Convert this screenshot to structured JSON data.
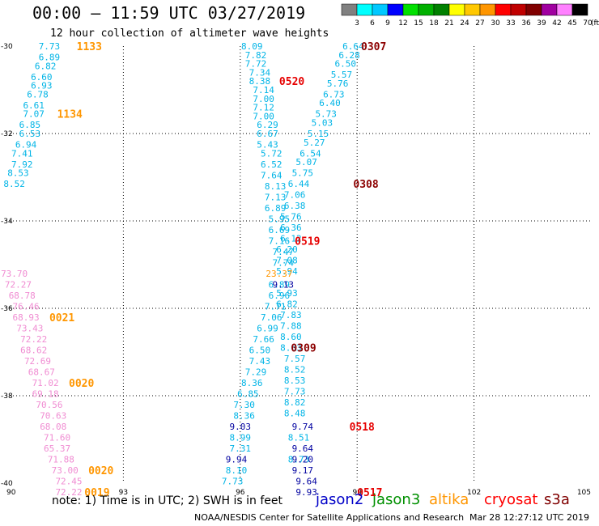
{
  "header": {
    "title": "00:00 – 11:59 UTC 03/27/2019",
    "subtitle": "12 hour collection of altimeter wave heights"
  },
  "colorbar": {
    "labels": [
      "3",
      "6",
      "9",
      "12",
      "15",
      "18",
      "21",
      "24",
      "27",
      "30",
      "33",
      "36",
      "39",
      "42",
      "45",
      "70"
    ],
    "unit": "(ft)",
    "colors": [
      "#808080",
      "#00ffff",
      "#00c8ff",
      "#0000ff",
      "#00e000",
      "#00b000",
      "#008000",
      "#ffff00",
      "#ffc800",
      "#ff9600",
      "#ff0000",
      "#c00000",
      "#800000",
      "#a000a0",
      "#ff80ff",
      "#000000"
    ]
  },
  "footer": {
    "note": "note:  1) Time is in UTC; 2) SWH is in feet",
    "satellites": [
      {
        "name": "jason2",
        "color": "#0000c8"
      },
      {
        "name": "jason3",
        "color": "#009000"
      },
      {
        "name": "altika",
        "color": "#ff9600"
      },
      {
        "name": "cryosat",
        "color": "#ff0000"
      },
      {
        "name": "s3a",
        "color": "#800000"
      }
    ],
    "credit": "NOAA/NESDIS Center for Satellite Applications and Research",
    "timestamp": "Mar 28 12:27:12 UTC 2019"
  },
  "chart_data": {
    "type": "scatter",
    "xlim": [
      90,
      105
    ],
    "ylim": [
      -40,
      -30
    ],
    "x_ticks": [
      90,
      93,
      96,
      99,
      102,
      105
    ],
    "y_ticks": [
      -30,
      -32,
      -34,
      -36,
      -38,
      -40
    ],
    "x_tick_labels": [
      "90",
      "93",
      "96",
      "99",
      "102",
      "105"
    ],
    "y_tick_labels": [
      "-30",
      "-32",
      "-34",
      "-36",
      "-38",
      "-40"
    ],
    "grid": true,
    "colors": {
      "cyan": "#00b4e6",
      "pink": "#f08cd2",
      "navy": "#0000a0",
      "orange": "#ff9600",
      "red": "#e60000",
      "darkred": "#8c0000"
    },
    "tracks": [
      {
        "color": "cyan",
        "points": [
          [
            91.1,
            -30.0,
            "7.73"
          ],
          [
            91.1,
            -30.25,
            "6.89"
          ],
          [
            91.0,
            -30.45,
            "6.82"
          ],
          [
            90.9,
            -30.7,
            "6.60"
          ],
          [
            90.9,
            -30.9,
            "6.93"
          ],
          [
            90.8,
            -31.1,
            "6.78"
          ],
          [
            90.7,
            -31.35,
            "6.61"
          ],
          [
            90.7,
            -31.55,
            "7.07"
          ],
          [
            90.6,
            -31.8,
            "6.85"
          ],
          [
            90.6,
            -32.0,
            "6.53"
          ],
          [
            90.5,
            -32.25,
            "6.94"
          ],
          [
            90.4,
            -32.45,
            "7.41"
          ],
          [
            90.4,
            -32.7,
            "7.92"
          ],
          [
            90.3,
            -32.9,
            "8.53"
          ],
          [
            90.2,
            -33.15,
            "8.52"
          ]
        ]
      },
      {
        "color": "cyan",
        "points": [
          [
            96.3,
            -30.0,
            "8.09"
          ],
          [
            96.4,
            -30.2,
            "7.82"
          ],
          [
            96.4,
            -30.4,
            "7.72"
          ],
          [
            96.5,
            -30.6,
            "7.34"
          ],
          [
            96.5,
            -30.8,
            "8.38"
          ],
          [
            96.6,
            -31.0,
            "7.14"
          ],
          [
            96.6,
            -31.2,
            "7.00"
          ],
          [
            96.6,
            -31.4,
            "7.12"
          ],
          [
            96.6,
            -31.6,
            "7.00"
          ],
          [
            96.7,
            -31.8,
            "6.29"
          ],
          [
            96.7,
            -32.0,
            "6.67"
          ],
          [
            96.7,
            -32.25,
            "5.43"
          ],
          [
            96.8,
            -32.45,
            "5.72"
          ],
          [
            96.8,
            -32.7,
            "6.52"
          ],
          [
            96.8,
            -32.95,
            "7.64"
          ],
          [
            96.9,
            -33.2,
            "8.13"
          ],
          [
            96.9,
            -33.45,
            "7.13"
          ],
          [
            96.9,
            -33.7,
            "6.89"
          ],
          [
            97.0,
            -33.95,
            "5.95"
          ],
          [
            97.0,
            -34.2,
            "6.69"
          ],
          [
            97.0,
            -34.45,
            "7.16"
          ],
          [
            97.1,
            -34.7,
            "7.47"
          ],
          [
            97.1,
            -34.95,
            "7.74"
          ],
          [
            97.0,
            -35.45,
            "6.89"
          ],
          [
            97.0,
            -35.7,
            "6.96"
          ],
          [
            96.9,
            -35.95,
            "7.71"
          ],
          [
            96.8,
            -36.2,
            "7.06"
          ],
          [
            96.7,
            -36.45,
            "6.99"
          ],
          [
            96.6,
            -36.7,
            "7.66"
          ],
          [
            96.5,
            -36.95,
            "6.50"
          ],
          [
            96.5,
            -37.2,
            "7.43"
          ],
          [
            96.4,
            -37.45,
            "7.29"
          ],
          [
            96.3,
            -37.7,
            "8.36"
          ],
          [
            96.2,
            -37.95,
            "6.85"
          ],
          [
            96.1,
            -38.2,
            "7.30"
          ],
          [
            96.1,
            -38.45,
            "8.36"
          ],
          [
            96.0,
            -38.95,
            "8.99"
          ],
          [
            96.0,
            -39.2,
            "7.31"
          ],
          [
            95.9,
            -39.7,
            "8.10"
          ],
          [
            95.8,
            -39.95,
            "7.73"
          ]
        ]
      },
      {
        "color": "cyan",
        "points": [
          [
            98.9,
            -30.0,
            "6.64"
          ],
          [
            98.8,
            -30.2,
            "6.28"
          ],
          [
            98.7,
            -30.4,
            "6.50"
          ],
          [
            98.6,
            -30.65,
            "5.57"
          ],
          [
            98.5,
            -30.85,
            "5.76"
          ],
          [
            98.4,
            -31.1,
            "6.73"
          ],
          [
            98.3,
            -31.3,
            "6.40"
          ],
          [
            98.2,
            -31.55,
            "5.73"
          ],
          [
            98.1,
            -31.75,
            "5.03"
          ],
          [
            98.0,
            -32.0,
            "5.15"
          ],
          [
            97.9,
            -32.2,
            "5.27"
          ],
          [
            97.8,
            -32.45,
            "6.54"
          ],
          [
            97.7,
            -32.65,
            "5.07"
          ],
          [
            97.6,
            -32.9,
            "5.75"
          ],
          [
            97.5,
            -33.15,
            "6.44"
          ],
          [
            97.4,
            -33.4,
            "7.06"
          ],
          [
            97.4,
            -33.65,
            "6.38"
          ],
          [
            97.3,
            -33.9,
            "5.76"
          ],
          [
            97.3,
            -34.15,
            "6.36"
          ],
          [
            97.3,
            -34.4,
            "6.12"
          ],
          [
            97.2,
            -34.65,
            "6.20"
          ],
          [
            97.2,
            -34.9,
            "7.08"
          ],
          [
            97.2,
            -35.15,
            "5.94"
          ],
          [
            97.2,
            -35.65,
            "5.93"
          ],
          [
            97.2,
            -35.9,
            "6.82"
          ],
          [
            97.3,
            -36.15,
            "7.83"
          ],
          [
            97.3,
            -36.4,
            "7.88"
          ],
          [
            97.3,
            -36.65,
            "8.60"
          ],
          [
            97.3,
            -36.9,
            "8.63"
          ],
          [
            97.4,
            -37.15,
            "7.57"
          ],
          [
            97.4,
            -37.4,
            "8.52"
          ],
          [
            97.4,
            -37.65,
            "8.53"
          ],
          [
            97.4,
            -37.9,
            "7.73"
          ],
          [
            97.4,
            -38.15,
            "8.82"
          ],
          [
            97.4,
            -38.4,
            "8.48"
          ],
          [
            97.5,
            -38.95,
            "8.51"
          ],
          [
            97.5,
            -39.45,
            "8.73"
          ]
        ]
      },
      {
        "color": "pink",
        "points": [
          [
            90.2,
            -35.2,
            "73.70"
          ],
          [
            90.3,
            -35.45,
            "72.27"
          ],
          [
            90.4,
            -35.7,
            "68.78"
          ],
          [
            90.5,
            -35.95,
            "76.46"
          ],
          [
            90.5,
            -36.2,
            "68.93"
          ],
          [
            90.6,
            -36.45,
            "73.43"
          ],
          [
            90.7,
            -36.7,
            "72.22"
          ],
          [
            90.7,
            -36.95,
            "68.62"
          ],
          [
            90.8,
            -37.2,
            "72.69"
          ],
          [
            90.9,
            -37.45,
            "68.67"
          ],
          [
            91.0,
            -37.7,
            "71.02"
          ],
          [
            91.0,
            -37.95,
            "69.18"
          ],
          [
            91.1,
            -38.2,
            "70.56"
          ],
          [
            91.2,
            -38.45,
            "70.63"
          ],
          [
            91.2,
            -38.7,
            "68.08"
          ],
          [
            91.3,
            -38.95,
            "71.60"
          ],
          [
            91.3,
            -39.2,
            "65.37"
          ],
          [
            91.4,
            -39.45,
            "71.88"
          ],
          [
            91.5,
            -39.7,
            "73.00"
          ],
          [
            91.6,
            -39.95,
            "72.45"
          ],
          [
            91.6,
            -40.2,
            "72.22"
          ]
        ]
      },
      {
        "color": "navy",
        "points": [
          [
            97.6,
            -38.7,
            "9.74"
          ],
          [
            97.6,
            -39.2,
            "9.64"
          ],
          [
            97.6,
            -39.45,
            "9.20"
          ],
          [
            97.6,
            -39.7,
            "9.17"
          ],
          [
            97.7,
            -39.95,
            "9.64"
          ],
          [
            97.7,
            -40.2,
            "9.93"
          ],
          [
            96.0,
            -38.7,
            "9.03"
          ],
          [
            95.9,
            -39.45,
            "9.94"
          ]
        ]
      },
      {
        "color": "orange",
        "points": [
          [
            97.0,
            -35.2,
            "23.37"
          ]
        ]
      },
      {
        "color": "navy",
        "points": [
          [
            97.1,
            -35.45,
            "9.13"
          ]
        ]
      }
    ],
    "time_labels": [
      {
        "x": 91.8,
        "y": -30.0,
        "text": "1133",
        "color": "orange"
      },
      {
        "x": 91.3,
        "y": -31.55,
        "text": "1134",
        "color": "orange"
      },
      {
        "x": 91.1,
        "y": -36.2,
        "text": "0021",
        "color": "orange"
      },
      {
        "x": 91.6,
        "y": -37.7,
        "text": "0020",
        "color": "orange"
      },
      {
        "x": 92.1,
        "y": -39.7,
        "text": "0020",
        "color": "orange"
      },
      {
        "x": 92.0,
        "y": -40.2,
        "text": "0019",
        "color": "orange"
      },
      {
        "x": 97.0,
        "y": -30.8,
        "text": "0520",
        "color": "red"
      },
      {
        "x": 97.4,
        "y": -34.45,
        "text": "0519",
        "color": "red"
      },
      {
        "x": 98.8,
        "y": -38.7,
        "text": "0518",
        "color": "red"
      },
      {
        "x": 99.0,
        "y": -40.2,
        "text": "0517",
        "color": "red"
      },
      {
        "x": 99.1,
        "y": -30.0,
        "text": "0307",
        "color": "darkred"
      },
      {
        "x": 98.9,
        "y": -33.15,
        "text": "0308",
        "color": "darkred"
      },
      {
        "x": 97.3,
        "y": -36.9,
        "text": "0309",
        "color": "darkred"
      }
    ]
  }
}
